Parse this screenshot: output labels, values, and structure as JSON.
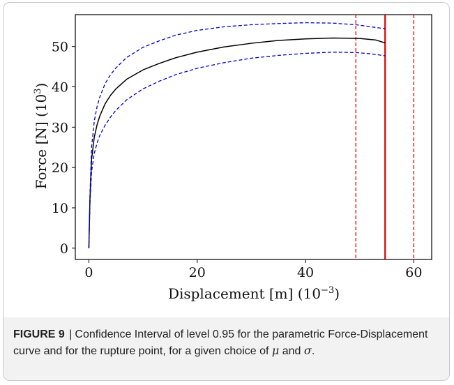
{
  "figure": {
    "label": "FIGURE 9",
    "separator": "|",
    "caption_text": "Confidence Interval of level 0.95 for the parametric Force-Displacement curve and for the rupture point, for a given choice of ",
    "caption_mu": "μ",
    "caption_and": " and ",
    "caption_sigma": "σ",
    "caption_end": "."
  },
  "chart_data": {
    "type": "line",
    "xlabel": "Displacement [m] (10⁻³)",
    "ylabel": "Force [N] (10³)",
    "xlim": [
      -2.5,
      63.3
    ],
    "ylim": [
      -2.8,
      57.9
    ],
    "xticks": [
      0,
      20,
      40,
      60
    ],
    "yticks": [
      0,
      10,
      20,
      30,
      40,
      50
    ],
    "series": [
      {
        "color": "#000000",
        "style": "solid",
        "x": [
          0,
          0.2,
          0.5,
          1,
          1.5,
          2,
          3,
          4,
          5,
          7,
          10,
          13,
          16,
          20,
          25,
          30,
          35,
          40,
          45,
          50,
          53,
          54.7
        ],
        "y": [
          0,
          12,
          22,
          27.5,
          30.5,
          32.7,
          35.8,
          37.9,
          39.5,
          41.9,
          44.2,
          45.8,
          47.2,
          48.6,
          49.9,
          50.8,
          51.5,
          51.9,
          52.1,
          52.0,
          51.6,
          50.9
        ]
      },
      {
        "color": "#0000cc",
        "style": "dashed",
        "x": [
          0,
          0.2,
          0.5,
          1,
          1.5,
          2,
          3,
          4,
          5,
          7,
          10,
          13,
          16,
          20,
          25,
          30,
          35,
          40,
          45,
          49.3,
          52,
          54.7
        ],
        "y": [
          0,
          13,
          25,
          31.5,
          35,
          37.4,
          40.8,
          43,
          44.7,
          47.3,
          49.8,
          51.4,
          52.8,
          54,
          54.9,
          55.4,
          55.7,
          55.9,
          55.8,
          55.4,
          54.9,
          54.4
        ]
      },
      {
        "color": "#0000cc",
        "style": "dashed",
        "x": [
          0,
          0.2,
          0.5,
          1,
          1.5,
          2,
          3,
          4,
          5,
          7,
          10,
          13,
          16,
          20,
          25,
          30,
          35,
          40,
          45,
          49.3,
          52,
          54.7
        ],
        "y": [
          0,
          11,
          19,
          23.5,
          26,
          27.9,
          30.5,
          32.5,
          34.2,
          36.8,
          39.5,
          41.4,
          43,
          44.6,
          46,
          47.1,
          47.8,
          48.3,
          48.6,
          48.5,
          48.2,
          47.7
        ]
      }
    ],
    "vlines": [
      {
        "x": 49.3,
        "color": "#dd0000",
        "style": "dashed"
      },
      {
        "x": 54.7,
        "color": "#dd0000",
        "style": "solid"
      },
      {
        "x": 60.0,
        "color": "#dd0000",
        "style": "dashed"
      }
    ],
    "grid": false
  }
}
